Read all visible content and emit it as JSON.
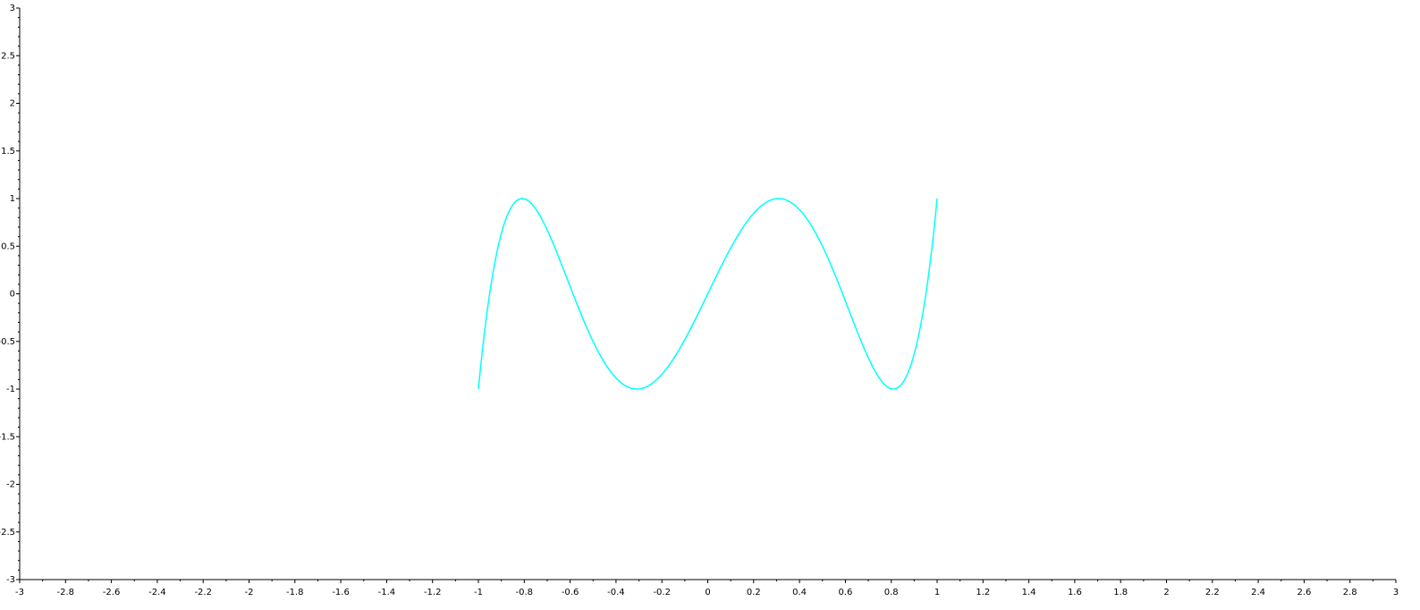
{
  "chart_data": {
    "type": "line",
    "title": "",
    "xlabel": "",
    "ylabel": "",
    "xlim": [
      -3,
      3
    ],
    "ylim": [
      -3,
      3
    ],
    "x_ticks": [
      "-3",
      "-2.8",
      "-2.6",
      "-2.4",
      "-2.2",
      "-2",
      "-1.8",
      "-1.6",
      "-1.4",
      "-1.2",
      "-1",
      "-0.8",
      "-0.6",
      "-0.4",
      "-0.2",
      "0",
      "0.2",
      "0.4",
      "0.6",
      "0.8",
      "1",
      "1.2",
      "1.4",
      "1.6",
      "1.8",
      "2",
      "2.2",
      "2.4",
      "2.6",
      "2.8",
      "3"
    ],
    "y_ticks": [
      "-3",
      "-2.5",
      "-2",
      "-1.5",
      "-1",
      "-0.5",
      "0",
      "0.5",
      "1",
      "1.5",
      "2",
      "2.5",
      "3"
    ],
    "grid": false,
    "legend": "none",
    "series": [
      {
        "color": "#00ffff",
        "curve": "lissajous",
        "x_equation": "sin(t)",
        "y_equation": "sin(5t)",
        "t_range": [
          0,
          6.2832
        ],
        "points": 800
      }
    ]
  }
}
